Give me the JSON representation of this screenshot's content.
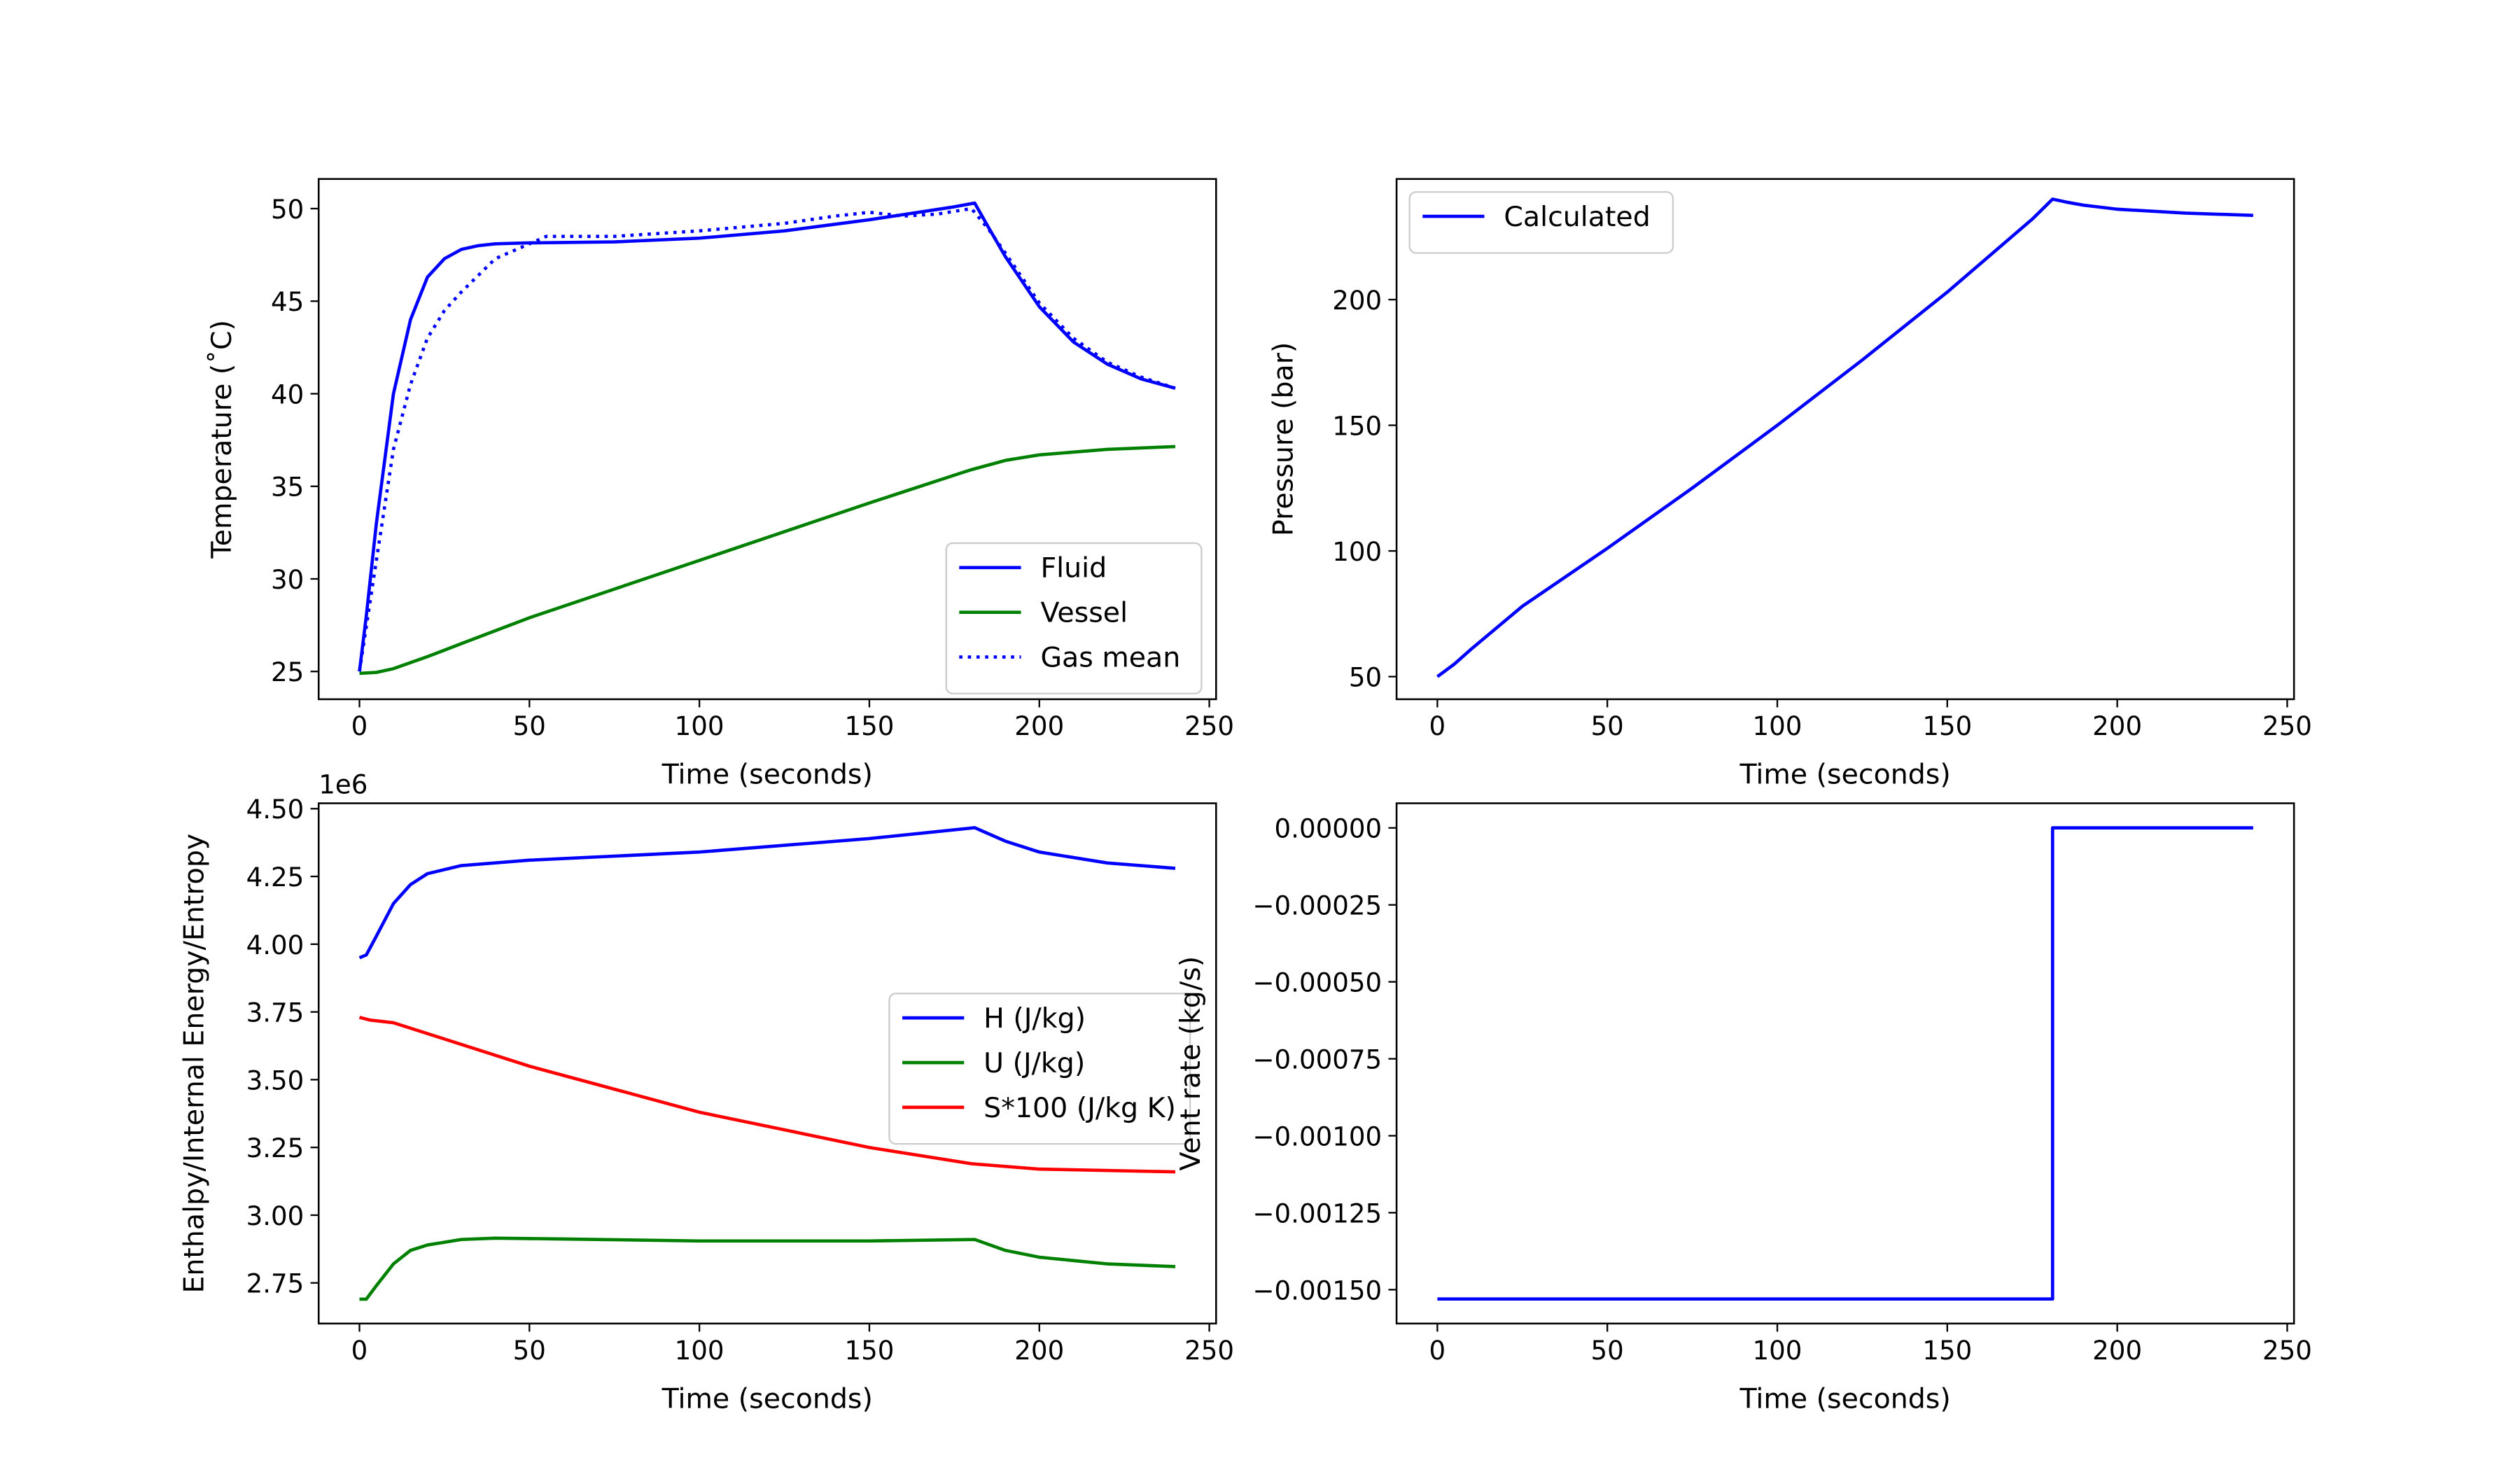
{
  "chart_data": [
    {
      "type": "line",
      "xlabel": "Time (seconds)",
      "ylabel": "Temperature ($^\\circ$C)",
      "ylabel_display": "Temperature (˚C)",
      "xlim": [
        -12,
        252
      ],
      "ylim": [
        23.5,
        51.6
      ],
      "xticks": [
        0,
        50,
        100,
        150,
        200,
        250
      ],
      "yticks": [
        25,
        30,
        35,
        40,
        45,
        50
      ],
      "legend": "lower-right",
      "series": [
        {
          "name": "Fluid",
          "color": "#0000ff",
          "style": "solid",
          "x": [
            0,
            2,
            5,
            10,
            15,
            20,
            25,
            30,
            35,
            40,
            50,
            75,
            100,
            125,
            150,
            175,
            181,
            185,
            190,
            200,
            210,
            220,
            230,
            240
          ],
          "y": [
            25,
            28,
            33,
            40,
            44,
            46.3,
            47.3,
            47.8,
            48.0,
            48.1,
            48.15,
            48.2,
            48.4,
            48.8,
            49.4,
            50.1,
            50.3,
            49.0,
            47.4,
            44.7,
            42.8,
            41.6,
            40.8,
            40.3
          ]
        },
        {
          "name": "Vessel",
          "color": "#008000",
          "style": "solid",
          "x": [
            0,
            5,
            10,
            20,
            30,
            50,
            100,
            150,
            175,
            180,
            190,
            200,
            220,
            240
          ],
          "y": [
            24.9,
            24.95,
            25.15,
            25.8,
            26.5,
            27.9,
            31.0,
            34.1,
            35.6,
            35.9,
            36.4,
            36.7,
            37.0,
            37.15
          ]
        },
        {
          "name": "Gas mean",
          "color": "#0000ff",
          "style": "dotted",
          "x": [
            0,
            5,
            10,
            15,
            20,
            25,
            30,
            40,
            50,
            55,
            75,
            100,
            125,
            140,
            150,
            160,
            170,
            180,
            185,
            190,
            200,
            210,
            220,
            230,
            240
          ],
          "y": [
            25,
            31,
            37,
            40.5,
            43,
            44.5,
            45.5,
            47.3,
            48.1,
            48.5,
            48.5,
            48.8,
            49.2,
            49.6,
            49.8,
            49.6,
            49.7,
            50.0,
            48.9,
            47.6,
            44.9,
            43.0,
            41.7,
            40.9,
            40.3
          ]
        }
      ]
    },
    {
      "type": "line",
      "xlabel": "Time (seconds)",
      "ylabel": "Pressure (bar)",
      "xlim": [
        -12,
        252
      ],
      "ylim": [
        41,
        248
      ],
      "xticks": [
        0,
        50,
        100,
        150,
        200,
        250
      ],
      "yticks": [
        50,
        100,
        150,
        200
      ],
      "legend": "upper-left",
      "series": [
        {
          "name": "Calculated",
          "color": "#0000ff",
          "style": "solid",
          "x": [
            0,
            5,
            10,
            25,
            50,
            75,
            100,
            125,
            150,
            175,
            181,
            185,
            190,
            200,
            220,
            240
          ],
          "y": [
            50,
            55,
            61,
            78,
            101,
            125,
            150,
            176,
            203,
            232,
            240,
            238.8,
            237.6,
            236,
            234.4,
            233.5
          ]
        }
      ]
    },
    {
      "type": "line",
      "xlabel": "Time (seconds)",
      "ylabel": "Enthalpy/Internal Energy/Entropy",
      "offset_text": "1e6",
      "xlim": [
        -12,
        252
      ],
      "ylim": [
        2.6,
        4.52
      ],
      "xticks": [
        0,
        50,
        100,
        150,
        200,
        250
      ],
      "yticks": [
        2.75,
        3.0,
        3.25,
        3.5,
        3.75,
        4.0,
        4.25,
        4.5
      ],
      "ytick_labels": [
        "2.75",
        "3.00",
        "3.25",
        "3.50",
        "3.75",
        "4.00",
        "4.25",
        "4.50"
      ],
      "legend": "center-right",
      "series": [
        {
          "name": "H (J/kg)",
          "color": "#0000ff",
          "x": [
            0,
            2,
            5,
            10,
            15,
            20,
            30,
            50,
            100,
            150,
            181,
            190,
            200,
            220,
            240
          ],
          "y": [
            3.95,
            3.96,
            4.03,
            4.15,
            4.22,
            4.26,
            4.29,
            4.31,
            4.34,
            4.39,
            4.43,
            4.38,
            4.34,
            4.3,
            4.28
          ]
        },
        {
          "name": "U (J/kg)",
          "color": "#008000",
          "x": [
            0,
            2,
            5,
            10,
            15,
            20,
            30,
            40,
            60,
            100,
            150,
            181,
            190,
            200,
            220,
            240
          ],
          "y": [
            2.69,
            2.69,
            2.74,
            2.82,
            2.87,
            2.89,
            2.91,
            2.915,
            2.912,
            2.905,
            2.905,
            2.91,
            2.87,
            2.845,
            2.82,
            2.81
          ]
        },
        {
          "name": "S*100 (J/kg K)",
          "color": "#ff0000",
          "x": [
            0,
            3,
            10,
            25,
            50,
            100,
            150,
            180,
            200,
            240
          ],
          "y": [
            3.73,
            3.72,
            3.71,
            3.65,
            3.55,
            3.38,
            3.25,
            3.19,
            3.17,
            3.16
          ]
        }
      ]
    },
    {
      "type": "line",
      "xlabel": "Time (seconds)",
      "ylabel": "Vent rate (kg/s)",
      "xlim": [
        -12,
        252
      ],
      "ylim": [
        -0.00161,
        8e-05
      ],
      "xticks": [
        0,
        50,
        100,
        150,
        200,
        250
      ],
      "yticks": [
        0,
        -0.00025,
        -0.0005,
        -0.00075,
        -0.001,
        -0.00125,
        -0.0015
      ],
      "ytick_labels": [
        "0.00000",
        "−0.00025",
        "−0.00050",
        "−0.00075",
        "−0.00100",
        "−0.00125",
        "−0.00150"
      ],
      "series": [
        {
          "color": "#0000ff",
          "x": [
            0,
            181,
            181,
            240
          ],
          "y": [
            -0.00153,
            -0.00153,
            0,
            0
          ]
        }
      ]
    }
  ]
}
